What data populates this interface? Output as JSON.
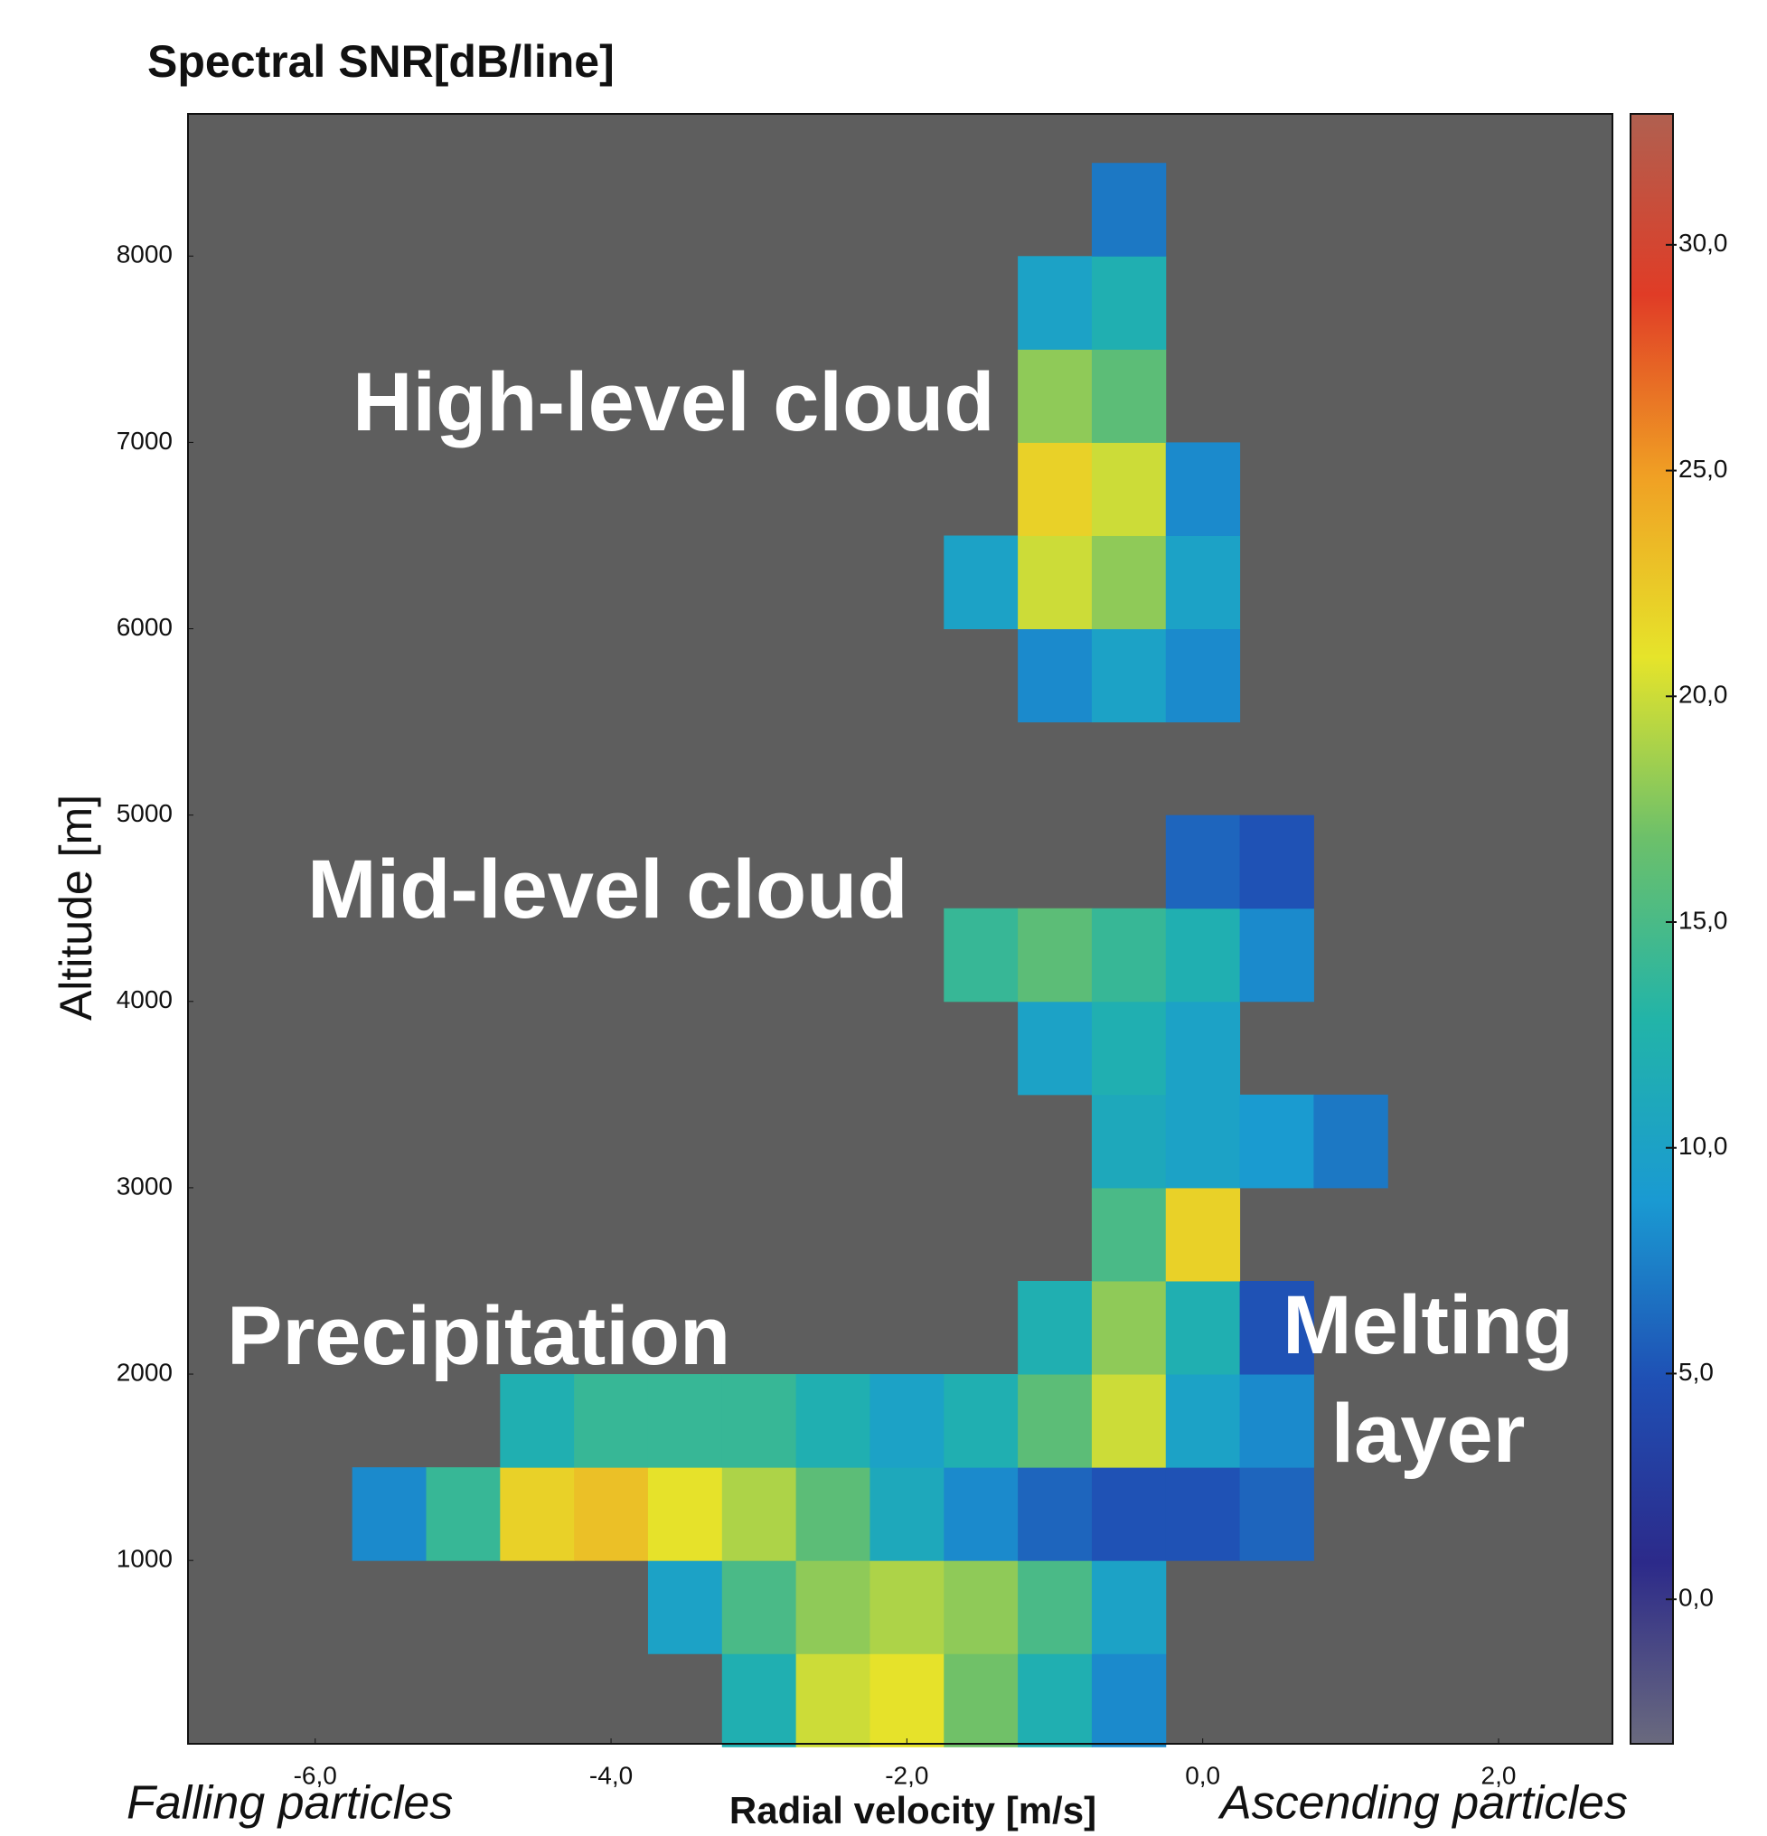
{
  "chart_data": {
    "type": "heatmap",
    "title": "Spectral SNR[dB/line]",
    "x_label": "Radial velocity [m/s]",
    "y_label": "Altitude [m]",
    "annotations": [
      "High-level cloud",
      "Mid-level cloud",
      "Precipitation",
      "Melting layer",
      "Falling particles",
      "Ascending particles"
    ],
    "x": [
      -5.5,
      -5,
      -4.5,
      -4,
      -3.5,
      -3,
      -2.5,
      -2,
      -1.5,
      -1,
      -0.5,
      0,
      0.5,
      1
    ],
    "y": [
      250,
      750,
      1250,
      1750,
      2250,
      2750,
      3250,
      3750,
      4250,
      4750,
      5250,
      5750,
      6250,
      6750,
      7250,
      7750,
      8250
    ],
    "x_cell": 0.5,
    "y_cell": 500,
    "z": [
      [
        null,
        null,
        null,
        null,
        null,
        12,
        20,
        21,
        17,
        12,
        8,
        null,
        null,
        null
      ],
      [
        null,
        null,
        null,
        null,
        10,
        15,
        18,
        19,
        18,
        15,
        10,
        null,
        null,
        null
      ],
      [
        8,
        14,
        22,
        23,
        21,
        19,
        16,
        11,
        8,
        6,
        5,
        5,
        6,
        null
      ],
      [
        null,
        null,
        12,
        14,
        14,
        14,
        12,
        10,
        12,
        16,
        20,
        10,
        8,
        null
      ],
      [
        null,
        null,
        null,
        null,
        null,
        null,
        null,
        null,
        null,
        12,
        18,
        12,
        5,
        null
      ],
      [
        null,
        null,
        null,
        null,
        null,
        null,
        null,
        null,
        null,
        null,
        15,
        22,
        null,
        null
      ],
      [
        null,
        null,
        null,
        null,
        null,
        null,
        null,
        null,
        null,
        null,
        11,
        10,
        9,
        7
      ],
      [
        null,
        null,
        null,
        null,
        null,
        null,
        null,
        null,
        null,
        10,
        12,
        10,
        null,
        null
      ],
      [
        null,
        null,
        null,
        null,
        null,
        null,
        null,
        null,
        14,
        16,
        14,
        12,
        8,
        null
      ],
      [
        null,
        null,
        null,
        null,
        null,
        null,
        null,
        null,
        null,
        null,
        null,
        6,
        5,
        null
      ],
      [
        null,
        null,
        null,
        null,
        null,
        null,
        null,
        null,
        null,
        null,
        null,
        null,
        null,
        null
      ],
      [
        null,
        null,
        null,
        null,
        null,
        null,
        null,
        null,
        null,
        8,
        10,
        8,
        null,
        null
      ],
      [
        null,
        null,
        null,
        null,
        null,
        null,
        null,
        null,
        10,
        20,
        18,
        10,
        null,
        null
      ],
      [
        null,
        null,
        null,
        null,
        null,
        null,
        null,
        null,
        null,
        22,
        20,
        8,
        null,
        null
      ],
      [
        null,
        null,
        null,
        null,
        null,
        null,
        null,
        null,
        null,
        18,
        16,
        null,
        null,
        null
      ],
      [
        null,
        null,
        null,
        null,
        null,
        null,
        null,
        null,
        null,
        10,
        12,
        null,
        null,
        null
      ],
      [
        null,
        null,
        null,
        null,
        null,
        null,
        null,
        null,
        null,
        null,
        7,
        null,
        null,
        null
      ]
    ],
    "xlim": [
      -6.86,
      2.77
    ],
    "ylim": [
      16,
      8763
    ],
    "clim": [
      -3.2,
      32.9
    ],
    "xticks": [
      {
        "value": -6,
        "label": "-6,0"
      },
      {
        "value": -4,
        "label": "-4,0"
      },
      {
        "value": -2,
        "label": "-2,0"
      },
      {
        "value": 0,
        "label": "0,0"
      },
      {
        "value": 2,
        "label": "2,0"
      }
    ],
    "yticks": [
      1000,
      2000,
      3000,
      4000,
      5000,
      6000,
      7000,
      8000
    ],
    "cticks": [
      {
        "value": 0,
        "label": "0,0"
      },
      {
        "value": 5,
        "label": "5,0"
      },
      {
        "value": 10,
        "label": "10,0"
      },
      {
        "value": 15,
        "label": "15,0"
      },
      {
        "value": 20,
        "label": "20,0"
      },
      {
        "value": 25,
        "label": "25,0"
      },
      {
        "value": 30,
        "label": "30,0"
      }
    ],
    "background": "#5e5e5e",
    "colormap": [
      "#6a6a7e",
      "#2c2a8a",
      "#1f4fb4",
      "#1a9ad2",
      "#22b4a8",
      "#6cc06a",
      "#e6e42a",
      "#f0a024",
      "#e03c26",
      "#b06050"
    ]
  }
}
